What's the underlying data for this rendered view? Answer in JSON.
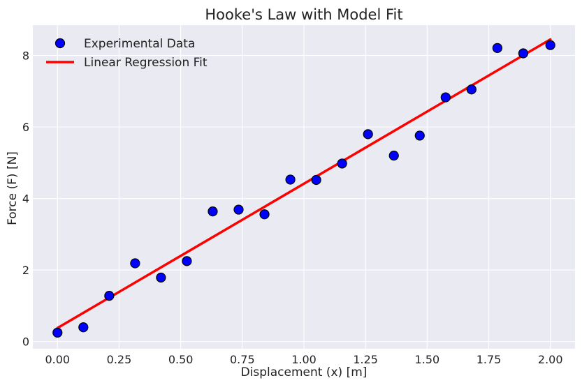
{
  "chart_data": {
    "type": "scatter",
    "title": "Hooke's Law with Model Fit",
    "xlabel": "Displacement (x) [m]",
    "ylabel": "Force (F) [N]",
    "xlim": [
      -0.1,
      2.1
    ],
    "ylim": [
      -0.2,
      8.85
    ],
    "x_ticks": [
      0.0,
      0.25,
      0.5,
      0.75,
      1.0,
      1.25,
      1.5,
      1.75,
      2.0
    ],
    "x_tick_labels": [
      "0.00",
      "0.25",
      "0.50",
      "0.75",
      "1.00",
      "1.25",
      "1.50",
      "1.75",
      "2.00"
    ],
    "y_ticks": [
      0,
      2,
      4,
      6,
      8
    ],
    "y_tick_labels": [
      "0",
      "2",
      "4",
      "6",
      "8"
    ],
    "grid": true,
    "legend_position": "top-left",
    "series": [
      {
        "name": "Experimental Data",
        "kind": "scatter",
        "color": "#0000ff",
        "edge_color": "#000000",
        "points": [
          {
            "x": 0.0,
            "y": 0.25
          },
          {
            "x": 0.105,
            "y": 0.4
          },
          {
            "x": 0.21,
            "y": 1.28
          },
          {
            "x": 0.315,
            "y": 2.19
          },
          {
            "x": 0.42,
            "y": 1.79
          },
          {
            "x": 0.525,
            "y": 2.25
          },
          {
            "x": 0.63,
            "y": 3.64
          },
          {
            "x": 0.735,
            "y": 3.69
          },
          {
            "x": 0.84,
            "y": 3.56
          },
          {
            "x": 0.945,
            "y": 4.53
          },
          {
            "x": 1.05,
            "y": 4.52
          },
          {
            "x": 1.155,
            "y": 4.98
          },
          {
            "x": 1.26,
            "y": 5.8
          },
          {
            "x": 1.365,
            "y": 5.2
          },
          {
            "x": 1.47,
            "y": 5.76
          },
          {
            "x": 1.575,
            "y": 6.83
          },
          {
            "x": 1.68,
            "y": 7.05
          },
          {
            "x": 1.785,
            "y": 8.21
          },
          {
            "x": 1.89,
            "y": 8.06
          },
          {
            "x": 2.0,
            "y": 8.29
          }
        ]
      },
      {
        "name": "Linear Regression Fit",
        "kind": "line",
        "color": "#ff0000",
        "points": [
          {
            "x": 0.0,
            "y": 0.38
          },
          {
            "x": 2.0,
            "y": 8.45
          }
        ]
      }
    ]
  }
}
